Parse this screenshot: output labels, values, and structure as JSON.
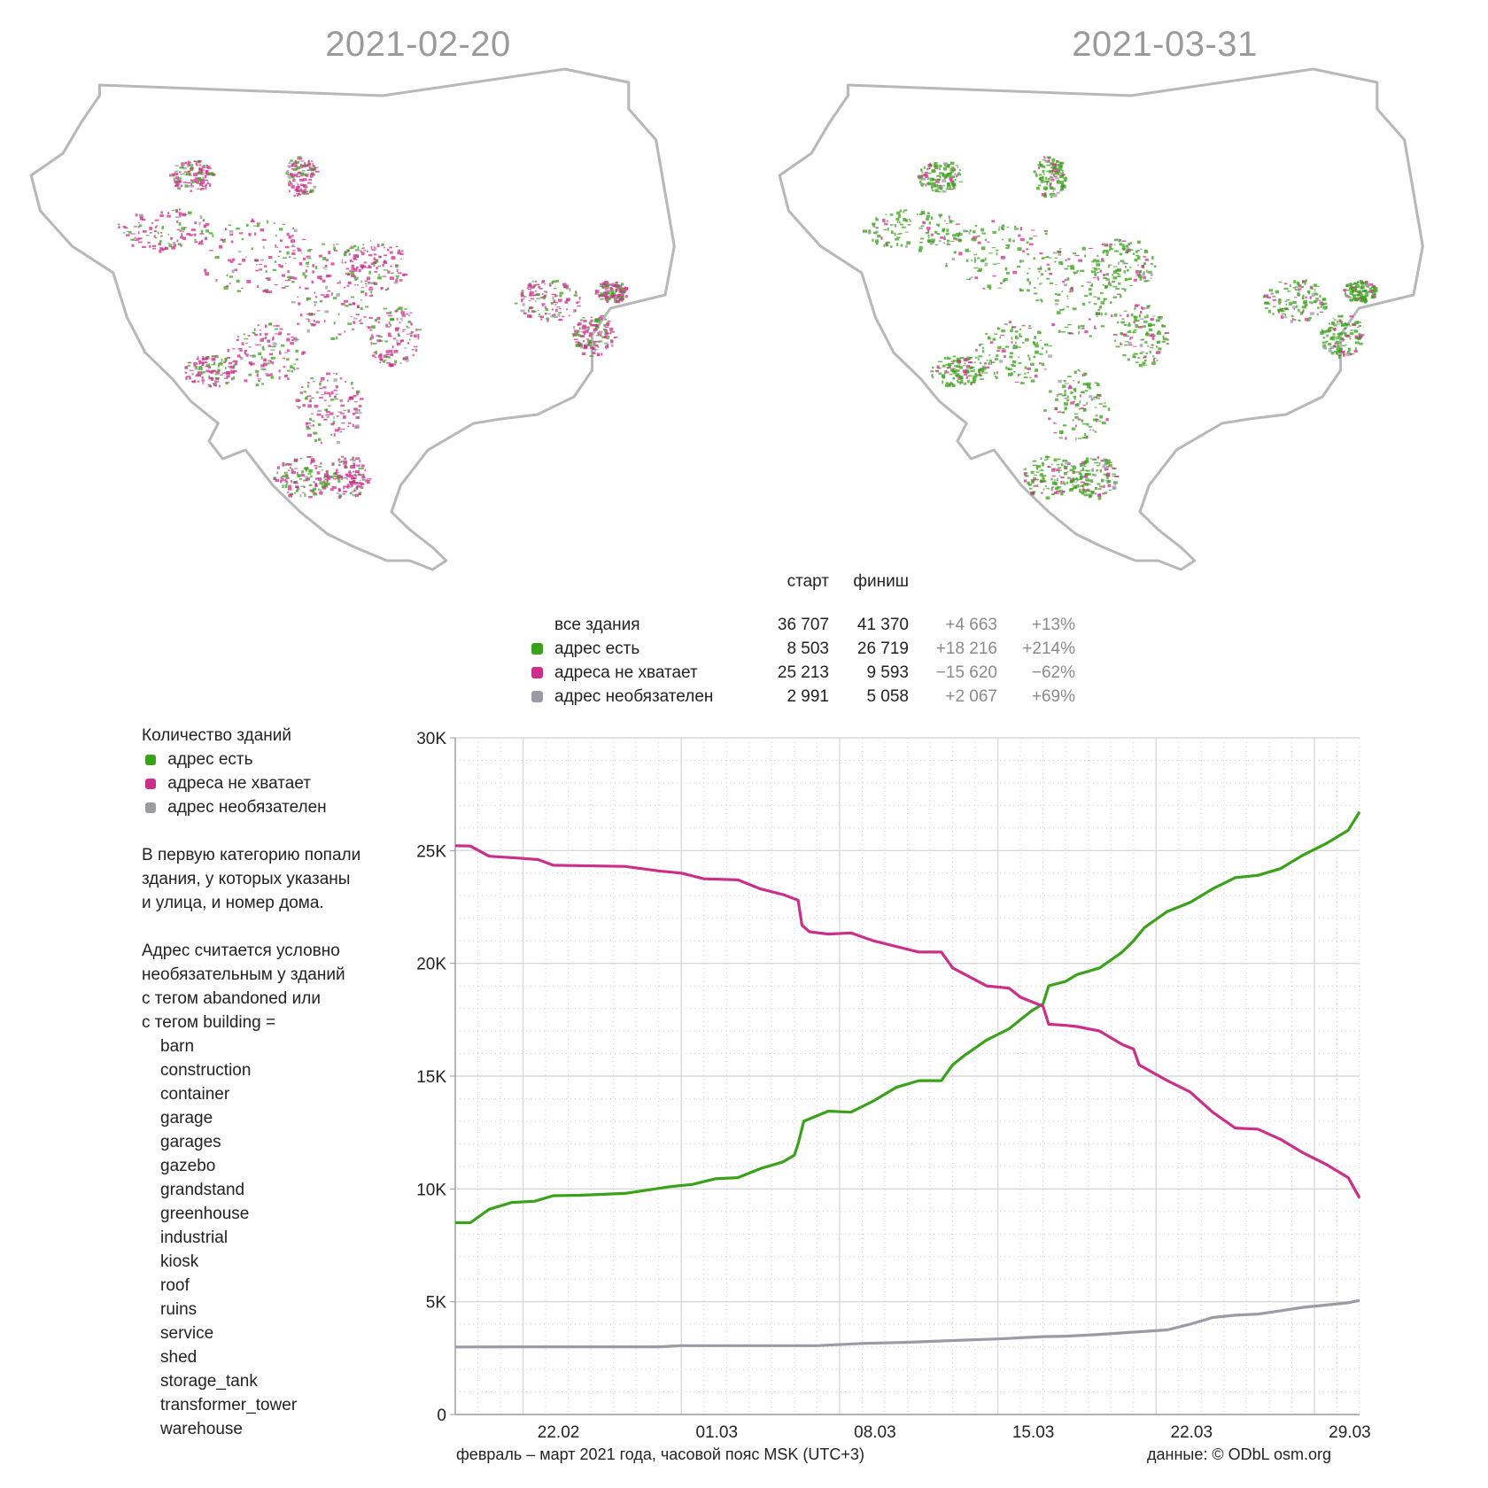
{
  "maps": [
    {
      "date": "2021-02-20"
    },
    {
      "date": "2021-03-31"
    }
  ],
  "colors": {
    "green": "#3aa21a",
    "magenta": "#cc2f8a",
    "gray": "#9b9ba6",
    "outline": "#b8b8b8"
  },
  "stats": {
    "headers": {
      "start": "старт",
      "finish": "финиш"
    },
    "rows": [
      {
        "label": "все здания",
        "start": "36 707",
        "finish": "41 370",
        "delta": "+4 663",
        "pct": "+13%",
        "color": ""
      },
      {
        "label": "адрес есть",
        "start": "8 503",
        "finish": "26 719",
        "delta": "+18 216",
        "pct": "+214%",
        "color": "#3aa21a"
      },
      {
        "label": "адреса не хватает",
        "start": "25 213",
        "finish": "9 593",
        "delta": "−15 620",
        "pct": "−62%",
        "color": "#cc2f8a"
      },
      {
        "label": "адрес необязателен",
        "start": "2 991",
        "finish": "5 058",
        "delta": "+2 067",
        "pct": "+69%",
        "color": "#9b9ba6"
      }
    ]
  },
  "legend": {
    "title": "Количество зданий",
    "items": [
      "адрес есть",
      "адреса не хватает",
      "адрес необязателен"
    ]
  },
  "notes": {
    "para1": [
      "В первую категорию попали",
      "здания, у которых указаны",
      "и улица, и номер дома."
    ],
    "para2": [
      "Адрес считается условно",
      "необязательным у зданий",
      "с тегом abandoned или",
      "с тегом building ="
    ],
    "tags": [
      "barn",
      "construction",
      "container",
      "garage",
      "garages",
      "gazebo",
      "grandstand",
      "greenhouse",
      "industrial",
      "kiosk",
      "roof",
      "ruins",
      "service",
      "shed",
      "storage_tank",
      "transformer_tower",
      "warehouse"
    ]
  },
  "footer": {
    "xcaption": "февраль – март 2021 года, часовой пояс MSK (UTC+3)",
    "source": "данные: © ODbL osm.org"
  },
  "chart_data": {
    "type": "line",
    "xlabel": "февраль – март 2021 года, часовой пояс MSK (UTC+3)",
    "ylabel": "",
    "x_range": [
      "2021-02-19",
      "2021-03-31"
    ],
    "ylim": [
      0,
      30000
    ],
    "y_ticks": [
      0,
      5000,
      10000,
      15000,
      20000,
      25000,
      30000
    ],
    "y_tick_labels": [
      "0",
      "5K",
      "10K",
      "15K",
      "20K",
      "25K",
      "30K"
    ],
    "x_tick_labels": [
      {
        "label": "22.02",
        "date": "2021-02-22"
      },
      {
        "label": "01.03",
        "date": "2021-03-01"
      },
      {
        "label": "08.03",
        "date": "2021-03-08"
      },
      {
        "label": "15.03",
        "date": "2021-03-15"
      },
      {
        "label": "22.03",
        "date": "2021-03-22"
      },
      {
        "label": "29.03",
        "date": "2021-03-29"
      }
    ],
    "grid": true,
    "series": [
      {
        "name": "адрес есть",
        "color": "#3aa21a",
        "points": [
          [
            "2021-02-19",
            8500
          ],
          [
            "2021-02-19T16:00",
            8500
          ],
          [
            "2021-02-20T12:00",
            9100
          ],
          [
            "2021-02-21T12:00",
            9400
          ],
          [
            "2021-02-22T12:00",
            9450
          ],
          [
            "2021-02-23T08:00",
            9700
          ],
          [
            "2021-02-24T12:00",
            9720
          ],
          [
            "2021-02-26T12:00",
            9800
          ],
          [
            "2021-02-28T12:00",
            10100
          ],
          [
            "2021-03-01T12:00",
            10200
          ],
          [
            "2021-03-02T12:00",
            10450
          ],
          [
            "2021-03-03T12:00",
            10500
          ],
          [
            "2021-03-04T12:00",
            10900
          ],
          [
            "2021-03-05T12:00",
            11200
          ],
          [
            "2021-03-06T00:00",
            11500
          ],
          [
            "2021-03-06T04:00",
            12000
          ],
          [
            "2021-03-06T10:00",
            13000
          ],
          [
            "2021-03-07T12:00",
            13450
          ],
          [
            "2021-03-08T12:00",
            13400
          ],
          [
            "2021-03-09T12:00",
            13900
          ],
          [
            "2021-03-10T12:00",
            14500
          ],
          [
            "2021-03-11T12:00",
            14800
          ],
          [
            "2021-03-12T12:00",
            14800
          ],
          [
            "2021-03-13T00:00",
            15500
          ],
          [
            "2021-03-13T12:00",
            15900
          ],
          [
            "2021-03-14T12:00",
            16600
          ],
          [
            "2021-03-15T12:00",
            17100
          ],
          [
            "2021-03-16T00:00",
            17500
          ],
          [
            "2021-03-16T12:00",
            17900
          ],
          [
            "2021-03-17T00:00",
            18200
          ],
          [
            "2021-03-17T06:00",
            19000
          ],
          [
            "2021-03-18T00:00",
            19200
          ],
          [
            "2021-03-18T12:00",
            19500
          ],
          [
            "2021-03-19T12:00",
            19800
          ],
          [
            "2021-03-20T12:00",
            20500
          ],
          [
            "2021-03-21T00:00",
            21000
          ],
          [
            "2021-03-21T12:00",
            21600
          ],
          [
            "2021-03-22T12:00",
            22300
          ],
          [
            "2021-03-23T12:00",
            22700
          ],
          [
            "2021-03-24T12:00",
            23300
          ],
          [
            "2021-03-25T12:00",
            23800
          ],
          [
            "2021-03-26T12:00",
            23900
          ],
          [
            "2021-03-27T12:00",
            24200
          ],
          [
            "2021-03-28T12:00",
            24800
          ],
          [
            "2021-03-29T12:00",
            25300
          ],
          [
            "2021-03-30T12:00",
            25900
          ],
          [
            "2021-03-31T00:00",
            26719
          ]
        ]
      },
      {
        "name": "адреса не хватает",
        "color": "#cc2f8a",
        "points": [
          [
            "2021-02-19",
            25213
          ],
          [
            "2021-02-19T16:00",
            25200
          ],
          [
            "2021-02-20T12:00",
            24750
          ],
          [
            "2021-02-22T00:00",
            24650
          ],
          [
            "2021-02-22T16:00",
            24600
          ],
          [
            "2021-02-23T08:00",
            24350
          ],
          [
            "2021-02-26T12:00",
            24300
          ],
          [
            "2021-02-28T00:00",
            24100
          ],
          [
            "2021-03-01T00:00",
            24000
          ],
          [
            "2021-03-02T00:00",
            23750
          ],
          [
            "2021-03-03T12:00",
            23700
          ],
          [
            "2021-03-04T12:00",
            23300
          ],
          [
            "2021-03-05T12:00",
            23050
          ],
          [
            "2021-03-06T04:00",
            22800
          ],
          [
            "2021-03-06T08:00",
            21700
          ],
          [
            "2021-03-06T16:00",
            21400
          ],
          [
            "2021-03-07T12:00",
            21300
          ],
          [
            "2021-03-08T12:00",
            21350
          ],
          [
            "2021-03-09T12:00",
            21000
          ],
          [
            "2021-03-10T12:00",
            20750
          ],
          [
            "2021-03-11T12:00",
            20500
          ],
          [
            "2021-03-12T12:00",
            20500
          ],
          [
            "2021-03-13T00:00",
            19800
          ],
          [
            "2021-03-14T12:00",
            19000
          ],
          [
            "2021-03-15T12:00",
            18900
          ],
          [
            "2021-03-16T00:00",
            18500
          ],
          [
            "2021-03-16T12:00",
            18300
          ],
          [
            "2021-03-17T00:00",
            18100
          ],
          [
            "2021-03-17T06:00",
            17300
          ],
          [
            "2021-03-18T00:00",
            17250
          ],
          [
            "2021-03-18T12:00",
            17200
          ],
          [
            "2021-03-19T12:00",
            17000
          ],
          [
            "2021-03-20T12:00",
            16400
          ],
          [
            "2021-03-21T00:00",
            16200
          ],
          [
            "2021-03-21T06:00",
            15500
          ],
          [
            "2021-03-22T12:00",
            14800
          ],
          [
            "2021-03-23T12:00",
            14300
          ],
          [
            "2021-03-24T12:00",
            13400
          ],
          [
            "2021-03-25T12:00",
            12700
          ],
          [
            "2021-03-26T12:00",
            12650
          ],
          [
            "2021-03-27T12:00",
            12200
          ],
          [
            "2021-03-28T12:00",
            11600
          ],
          [
            "2021-03-29T12:00",
            11100
          ],
          [
            "2021-03-30T12:00",
            10500
          ],
          [
            "2021-03-31T00:00",
            9593
          ]
        ]
      },
      {
        "name": "адрес необязателен",
        "color": "#9b9ba6",
        "points": [
          [
            "2021-02-19",
            2991
          ],
          [
            "2021-02-22T00:00",
            3000
          ],
          [
            "2021-02-28T00:00",
            3000
          ],
          [
            "2021-03-01T00:00",
            3050
          ],
          [
            "2021-03-07T00:00",
            3050
          ],
          [
            "2021-03-09T00:00",
            3150
          ],
          [
            "2021-03-11T00:00",
            3200
          ],
          [
            "2021-03-13T00:00",
            3280
          ],
          [
            "2021-03-15T00:00",
            3350
          ],
          [
            "2021-03-16T00:00",
            3400
          ],
          [
            "2021-03-17T00:00",
            3450
          ],
          [
            "2021-03-18T00:00",
            3470
          ],
          [
            "2021-03-19T12:00",
            3550
          ],
          [
            "2021-03-21T00:00",
            3650
          ],
          [
            "2021-03-22T12:00",
            3750
          ],
          [
            "2021-03-23T12:00",
            4000
          ],
          [
            "2021-03-24T12:00",
            4300
          ],
          [
            "2021-03-25T12:00",
            4400
          ],
          [
            "2021-03-26T12:00",
            4450
          ],
          [
            "2021-03-27T12:00",
            4600
          ],
          [
            "2021-03-28T12:00",
            4750
          ],
          [
            "2021-03-29T12:00",
            4850
          ],
          [
            "2021-03-30T12:00",
            4950
          ],
          [
            "2021-03-31T00:00",
            5058
          ]
        ]
      }
    ]
  }
}
